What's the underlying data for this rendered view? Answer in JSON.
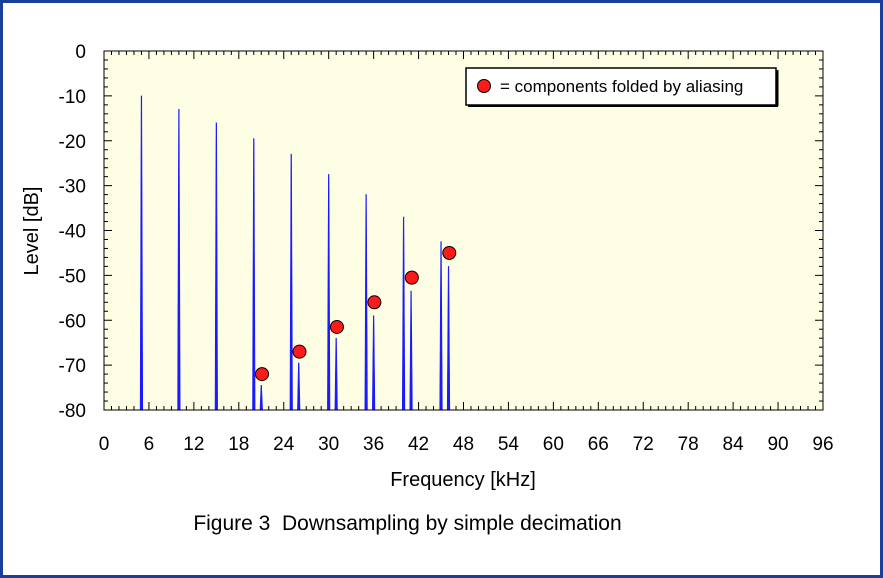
{
  "chart_data": {
    "type": "line",
    "xlabel": "Frequency [kHz]",
    "ylabel": "Level [dB]",
    "xlim": [
      0,
      96
    ],
    "ylim": [
      -80,
      0
    ],
    "x_ticks": [
      "0",
      "6",
      "12",
      "18",
      "24",
      "30",
      "36",
      "42",
      "48",
      "54",
      "60",
      "66",
      "72",
      "78",
      "84",
      "90",
      "96"
    ],
    "y_ticks": [
      "0",
      "-10",
      "-20",
      "-30",
      "-40",
      "-50",
      "-60",
      "-70",
      "-80"
    ],
    "grid": false,
    "legend_position": "top-right",
    "series": [
      {
        "name": "",
        "style": "impulse",
        "color": "#1a1aff",
        "x": [
          5,
          10,
          15,
          20,
          25,
          30,
          35,
          40,
          45
        ],
        "y": [
          -10,
          -13,
          -16,
          -19.5,
          -23,
          -27.5,
          -32,
          -37,
          -42.5
        ]
      },
      {
        "name": "",
        "style": "impulse",
        "color": "#1a1aff",
        "x": [
          21,
          26,
          31,
          36,
          41,
          46
        ],
        "y": [
          -74.5,
          -69.5,
          -64,
          -59,
          -53.5,
          -48
        ]
      },
      {
        "name": "= components folded by aliasing",
        "style": "marker",
        "color": "#ff1a1a",
        "x": [
          21.1,
          26.1,
          31.1,
          36.1,
          41.1,
          46.1
        ],
        "y": [
          -72,
          -67,
          -61.5,
          -56,
          -50.5,
          -45
        ]
      }
    ]
  },
  "legend_text": "= components folded by aliasing",
  "caption": "Figure 3  Downsampling by simple decimation",
  "colors": {
    "plot_background": "#fefee4",
    "frame_border": "#1a3f9a",
    "line": "#1a1aff",
    "marker": "#ff1a1a"
  }
}
